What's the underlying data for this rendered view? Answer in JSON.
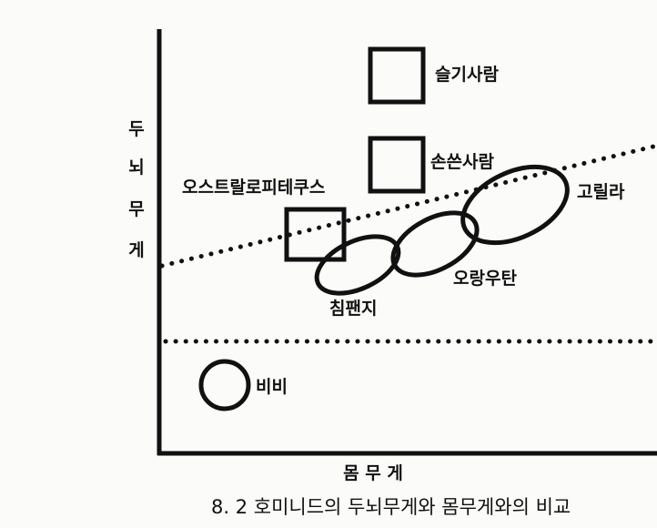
{
  "axes": {
    "y_label_chars": [
      "두",
      "뇌",
      "무",
      "게"
    ],
    "x_label": "몸 무 게"
  },
  "species": {
    "homo_sapiens": "슬기사람",
    "homo_habilis": "손쓴사람",
    "australopithecus": "오스트랄로피테쿠스",
    "gorilla": "고릴라",
    "orangutan": "오랑우탄",
    "chimpanzee": "침팬지",
    "baboon": "비비"
  },
  "caption": "8. 2 호미니드의 두뇌무게와 몸무게와의 비교",
  "colors": {
    "ink": "#111111",
    "background": "#fbfbfa"
  }
}
